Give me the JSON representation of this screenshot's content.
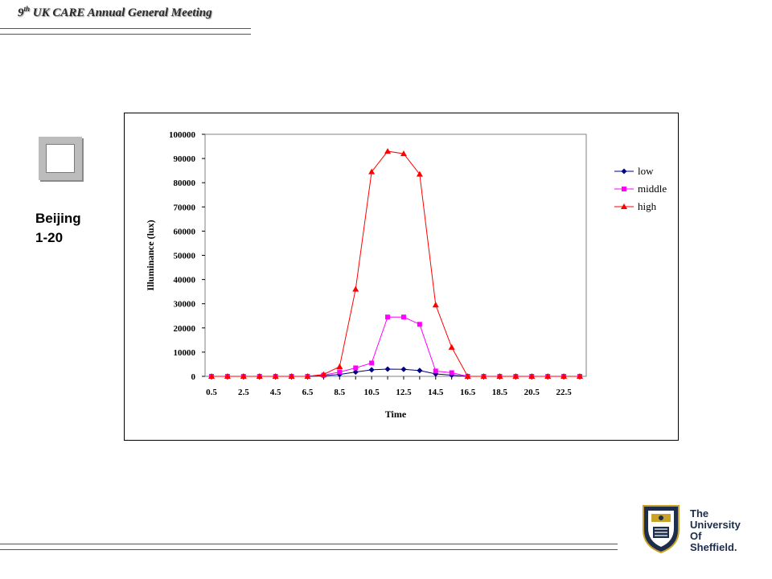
{
  "header": {
    "ordinal": "9",
    "ordinal_suffix": "th",
    "title": " UK CARE Annual General Meeting"
  },
  "location": {
    "line1": "Beijing",
    "line2": "1-20"
  },
  "logo": {
    "lines": [
      "The",
      "University",
      "Of",
      "Sheffield."
    ]
  },
  "chart_data": {
    "type": "line",
    "xlabel": "Time",
    "ylabel": "Illuminance (lux)",
    "ylim": [
      0,
      100000
    ],
    "yticks": [
      0,
      10000,
      20000,
      30000,
      40000,
      50000,
      60000,
      70000,
      80000,
      90000,
      100000
    ],
    "x": [
      0.5,
      1.5,
      2.5,
      3.5,
      4.5,
      5.5,
      6.5,
      7.5,
      8.5,
      9.5,
      10.5,
      11.5,
      12.5,
      13.5,
      14.5,
      15.5,
      16.5,
      17.5,
      18.5,
      19.5,
      20.5,
      21.5,
      22.5,
      23.5
    ],
    "xtick_labels": [
      "0.5",
      "2.5",
      "4.5",
      "6.5",
      "8.5",
      "10.5",
      "12.5",
      "14.5",
      "16.5",
      "18.5",
      "20.5",
      "22.5"
    ],
    "grid": false,
    "legend_position": "right",
    "series": [
      {
        "name": "low",
        "color": "#000080",
        "marker": "diamond",
        "values": [
          0,
          0,
          0,
          0,
          0,
          0,
          0,
          200,
          800,
          1800,
          2700,
          3000,
          2900,
          2400,
          1000,
          500,
          0,
          0,
          0,
          0,
          0,
          0,
          0,
          0
        ]
      },
      {
        "name": "middle",
        "color": "#ff00ff",
        "marker": "square",
        "values": [
          0,
          0,
          0,
          0,
          0,
          0,
          0,
          500,
          1800,
          3500,
          5500,
          24500,
          24500,
          21500,
          2200,
          1500,
          0,
          0,
          0,
          0,
          0,
          0,
          0,
          0
        ]
      },
      {
        "name": "high",
        "color": "#ff0000",
        "marker": "triangle",
        "values": [
          0,
          0,
          0,
          0,
          0,
          0,
          0,
          800,
          4000,
          36000,
          84500,
          93000,
          92000,
          83500,
          29500,
          12000,
          0,
          0,
          0,
          0,
          0,
          0,
          0,
          0
        ]
      }
    ]
  }
}
